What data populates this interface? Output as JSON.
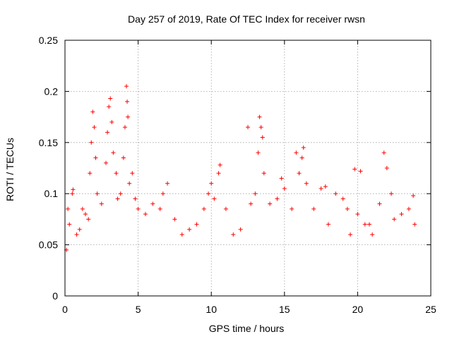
{
  "chart_data": {
    "type": "scatter",
    "title": "Day 257 of 2019, Rate Of TEC Index for receiver rwsn",
    "xlabel": "GPS time / hours",
    "ylabel": "ROTI / TECUs",
    "xlim": [
      0,
      25
    ],
    "ylim": [
      0,
      0.25
    ],
    "xticks": [
      0,
      5,
      10,
      15,
      20,
      25
    ],
    "xtick_labels": [
      "0",
      "5",
      "10",
      "15",
      "20",
      "25"
    ],
    "yticks": [
      0,
      0.05,
      0.1,
      0.15,
      0.2,
      0.25
    ],
    "ytick_labels": [
      "0",
      "0.05",
      "0.1",
      "0.15",
      "0.2",
      "0.25"
    ],
    "grid": true,
    "marker": "plus",
    "color": "#ff0000",
    "series": [
      {
        "points": [
          [
            0.1,
            0.045
          ],
          [
            0.2,
            0.085
          ],
          [
            0.3,
            0.07
          ],
          [
            0.5,
            0.1
          ],
          [
            0.55,
            0.104
          ],
          [
            0.8,
            0.06
          ],
          [
            1.0,
            0.065
          ],
          [
            1.2,
            0.085
          ],
          [
            1.4,
            0.08
          ],
          [
            1.6,
            0.075
          ],
          [
            1.7,
            0.12
          ],
          [
            1.8,
            0.15
          ],
          [
            1.9,
            0.18
          ],
          [
            2.0,
            0.165
          ],
          [
            2.1,
            0.135
          ],
          [
            2.2,
            0.1
          ],
          [
            2.5,
            0.09
          ],
          [
            2.8,
            0.13
          ],
          [
            2.9,
            0.16
          ],
          [
            3.0,
            0.185
          ],
          [
            3.1,
            0.193
          ],
          [
            3.2,
            0.17
          ],
          [
            3.3,
            0.14
          ],
          [
            3.5,
            0.12
          ],
          [
            3.6,
            0.095
          ],
          [
            3.8,
            0.1
          ],
          [
            4.0,
            0.135
          ],
          [
            4.1,
            0.165
          ],
          [
            4.2,
            0.205
          ],
          [
            4.25,
            0.19
          ],
          [
            4.3,
            0.175
          ],
          [
            4.4,
            0.11
          ],
          [
            4.6,
            0.12
          ],
          [
            4.8,
            0.095
          ],
          [
            5.0,
            0.085
          ],
          [
            5.5,
            0.08
          ],
          [
            6.0,
            0.09
          ],
          [
            6.5,
            0.085
          ],
          [
            6.7,
            0.1
          ],
          [
            7.0,
            0.11
          ],
          [
            7.5,
            0.075
          ],
          [
            8.0,
            0.06
          ],
          [
            8.5,
            0.065
          ],
          [
            9.0,
            0.07
          ],
          [
            9.5,
            0.085
          ],
          [
            9.8,
            0.1
          ],
          [
            10.0,
            0.11
          ],
          [
            10.2,
            0.095
          ],
          [
            10.5,
            0.12
          ],
          [
            10.6,
            0.128
          ],
          [
            11.0,
            0.085
          ],
          [
            11.5,
            0.06
          ],
          [
            12.0,
            0.065
          ],
          [
            12.5,
            0.165
          ],
          [
            12.7,
            0.09
          ],
          [
            13.0,
            0.1
          ],
          [
            13.2,
            0.14
          ],
          [
            13.3,
            0.175
          ],
          [
            13.4,
            0.165
          ],
          [
            13.5,
            0.155
          ],
          [
            13.6,
            0.12
          ],
          [
            14.0,
            0.09
          ],
          [
            14.5,
            0.095
          ],
          [
            14.8,
            0.115
          ],
          [
            15.0,
            0.105
          ],
          [
            15.5,
            0.085
          ],
          [
            15.8,
            0.14
          ],
          [
            16.0,
            0.12
          ],
          [
            16.2,
            0.135
          ],
          [
            16.3,
            0.145
          ],
          [
            16.5,
            0.11
          ],
          [
            17.0,
            0.085
          ],
          [
            17.5,
            0.105
          ],
          [
            17.8,
            0.107
          ],
          [
            18.0,
            0.07
          ],
          [
            18.5,
            0.1
          ],
          [
            19.0,
            0.095
          ],
          [
            19.3,
            0.085
          ],
          [
            19.5,
            0.06
          ],
          [
            19.8,
            0.124
          ],
          [
            20.0,
            0.08
          ],
          [
            20.2,
            0.122
          ],
          [
            20.5,
            0.07
          ],
          [
            20.8,
            0.07
          ],
          [
            21.0,
            0.06
          ],
          [
            21.5,
            0.09
          ],
          [
            21.8,
            0.14
          ],
          [
            22.0,
            0.125
          ],
          [
            22.3,
            0.1
          ],
          [
            22.5,
            0.075
          ],
          [
            23.0,
            0.08
          ],
          [
            23.5,
            0.085
          ],
          [
            23.8,
            0.098
          ],
          [
            23.9,
            0.07
          ]
        ]
      }
    ]
  }
}
